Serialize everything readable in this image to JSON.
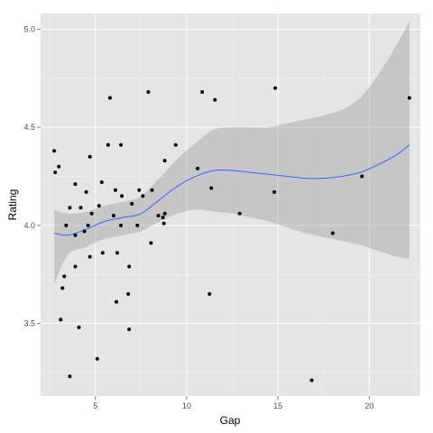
{
  "chart_data": {
    "type": "scatter",
    "title": "",
    "xlabel": "Gap",
    "ylabel": "Rating",
    "xlim": [
      2.0,
      22.8
    ],
    "ylim": [
      3.13,
      5.08
    ],
    "x_ticks": [
      5,
      10,
      15,
      20
    ],
    "x_tick_labels": [
      "5",
      "10",
      "15",
      "20"
    ],
    "y_ticks": [
      3.5,
      4.0,
      4.5,
      5.0
    ],
    "y_tick_labels": [
      "3.5",
      "4.0",
      "4.5",
      "5.0"
    ],
    "grid": true,
    "legend": "none",
    "colors": {
      "panel": "#e5e5e5",
      "grid_major": "#ffffff",
      "grid_minor": "#f2f2f2",
      "points": "#000000",
      "smooth_line": "#3366ff",
      "ribbon": "#999999"
    },
    "points": [
      {
        "x": 2.75,
        "y": 4.38
      },
      {
        "x": 2.8,
        "y": 4.27
      },
      {
        "x": 3.0,
        "y": 4.3
      },
      {
        "x": 3.1,
        "y": 3.52
      },
      {
        "x": 3.2,
        "y": 3.68
      },
      {
        "x": 3.3,
        "y": 3.74
      },
      {
        "x": 3.4,
        "y": 4.0
      },
      {
        "x": 3.6,
        "y": 3.23
      },
      {
        "x": 3.6,
        "y": 4.09
      },
      {
        "x": 3.9,
        "y": 4.21
      },
      {
        "x": 3.9,
        "y": 3.95
      },
      {
        "x": 3.9,
        "y": 3.79
      },
      {
        "x": 4.1,
        "y": 3.48
      },
      {
        "x": 4.2,
        "y": 4.09
      },
      {
        "x": 4.4,
        "y": 3.97
      },
      {
        "x": 4.5,
        "y": 4.17
      },
      {
        "x": 4.6,
        "y": 4.0
      },
      {
        "x": 4.7,
        "y": 4.35
      },
      {
        "x": 4.7,
        "y": 3.84
      },
      {
        "x": 4.8,
        "y": 4.06
      },
      {
        "x": 5.1,
        "y": 3.32
      },
      {
        "x": 5.2,
        "y": 4.1
      },
      {
        "x": 5.4,
        "y": 3.86
      },
      {
        "x": 5.35,
        "y": 4.22
      },
      {
        "x": 5.7,
        "y": 4.41
      },
      {
        "x": 5.8,
        "y": 4.65
      },
      {
        "x": 6.0,
        "y": 4.05
      },
      {
        "x": 6.1,
        "y": 4.18
      },
      {
        "x": 6.15,
        "y": 3.61
      },
      {
        "x": 6.2,
        "y": 3.86
      },
      {
        "x": 6.4,
        "y": 4.0
      },
      {
        "x": 6.45,
        "y": 4.15
      },
      {
        "x": 6.4,
        "y": 4.41
      },
      {
        "x": 6.8,
        "y": 3.65
      },
      {
        "x": 6.85,
        "y": 3.79
      },
      {
        "x": 6.85,
        "y": 3.47
      },
      {
        "x": 7.0,
        "y": 4.11
      },
      {
        "x": 7.3,
        "y": 4.0
      },
      {
        "x": 7.4,
        "y": 4.18
      },
      {
        "x": 7.6,
        "y": 4.15
      },
      {
        "x": 7.9,
        "y": 4.68
      },
      {
        "x": 8.05,
        "y": 3.91
      },
      {
        "x": 8.1,
        "y": 4.18
      },
      {
        "x": 8.45,
        "y": 4.05
      },
      {
        "x": 8.7,
        "y": 4.04
      },
      {
        "x": 8.75,
        "y": 4.01
      },
      {
        "x": 8.8,
        "y": 4.06
      },
      {
        "x": 8.8,
        "y": 4.33
      },
      {
        "x": 9.4,
        "y": 4.41
      },
      {
        "x": 10.6,
        "y": 4.29
      },
      {
        "x": 10.85,
        "y": 4.68
      },
      {
        "x": 11.25,
        "y": 3.65
      },
      {
        "x": 11.35,
        "y": 4.19
      },
      {
        "x": 11.55,
        "y": 4.64
      },
      {
        "x": 12.9,
        "y": 4.06
      },
      {
        "x": 14.8,
        "y": 4.17
      },
      {
        "x": 14.85,
        "y": 4.7
      },
      {
        "x": 16.85,
        "y": 3.21
      },
      {
        "x": 18.0,
        "y": 3.96
      },
      {
        "x": 19.6,
        "y": 4.25
      },
      {
        "x": 22.2,
        "y": 4.65
      }
    ],
    "smooth": {
      "method": "loess",
      "x": [
        2.75,
        3.5,
        4.5,
        5.5,
        6.5,
        7.5,
        8.5,
        9.5,
        10.5,
        11.5,
        12.5,
        13.5,
        14.5,
        15.5,
        16.5,
        17.5,
        18.5,
        19.5,
        20.5,
        21.5,
        22.2
      ],
      "y": [
        3.96,
        3.95,
        3.98,
        4.02,
        4.04,
        4.06,
        4.13,
        4.2,
        4.25,
        4.28,
        4.28,
        4.27,
        4.26,
        4.25,
        4.24,
        4.24,
        4.25,
        4.27,
        4.31,
        4.36,
        4.41
      ],
      "upper": [
        4.08,
        4.06,
        4.07,
        4.1,
        4.12,
        4.15,
        4.24,
        4.34,
        4.42,
        4.49,
        4.5,
        4.5,
        4.5,
        4.52,
        4.54,
        4.56,
        4.59,
        4.65,
        4.77,
        4.92,
        5.04
      ],
      "lower": [
        3.7,
        3.85,
        3.89,
        3.93,
        3.95,
        3.97,
        4.02,
        4.06,
        4.08,
        4.07,
        4.06,
        4.04,
        4.02,
        3.99,
        3.96,
        3.94,
        3.92,
        3.9,
        3.87,
        3.84,
        3.83
      ]
    }
  }
}
